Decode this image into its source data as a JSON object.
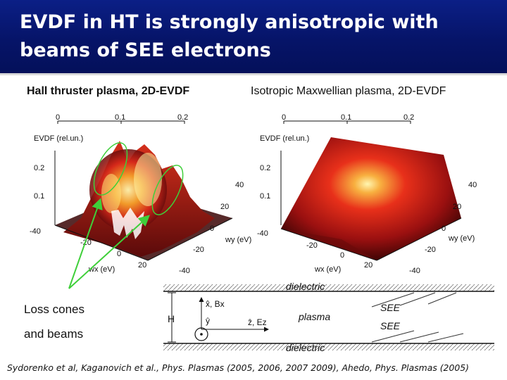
{
  "title": "EVDF in HT is strongly anisotropic with beams of SEE electrons",
  "left_panel": {
    "heading": "Hall thruster plasma, 2D-EVDF",
    "axis_title": "EVDF (rel.un.)",
    "top_ticks": [
      "0",
      "0.1",
      "0.2"
    ],
    "z_ticks": [
      "0.2",
      "0.1"
    ],
    "wx_ticks": [
      "-40",
      "-20",
      "0",
      "20"
    ],
    "wy_ticks": [
      "40",
      "20",
      "0",
      "-20",
      "-40"
    ],
    "wx_label": "wx (eV)",
    "wy_label": "wy (eV)"
  },
  "right_panel": {
    "heading": "Isotropic Maxwellian plasma, 2D-EVDF",
    "axis_title": "EVDF (rel.un.)",
    "top_ticks": [
      "0",
      "0.1",
      "0.2"
    ],
    "z_ticks": [
      "0.2",
      "0.1"
    ],
    "wx_ticks": [
      "-40",
      "-20",
      "0",
      "20"
    ],
    "wy_ticks": [
      "40",
      "20",
      "0",
      "-20",
      "-40"
    ],
    "wx_label": "wx (eV)",
    "wy_label": "wy (eV)"
  },
  "annotation": {
    "line1": "Loss cones",
    "line2": "and beams"
  },
  "schematic": {
    "top_wall": "dielectric",
    "bottom_wall": "dielectric",
    "middle": "plasma",
    "see_top": "SEE",
    "see_bottom": "SEE",
    "height": "H",
    "x_axis": "x̂, Bx",
    "y_axis": "ŷ",
    "z_axis": "ẑ, Ez"
  },
  "citation": "Sydorenko et al,  Kaganovich et al., Phys. Plasmas (2005, 2006, 2007 2009),  Ahedo, Phys. Plasmas (2005)",
  "colors": {
    "title_bg": "#061468",
    "evdf_peak": "#fff6b0",
    "evdf_mid": "#e8301a",
    "evdf_low": "#5a0a0a",
    "loss_cone_outline": "#3fcf3a"
  }
}
